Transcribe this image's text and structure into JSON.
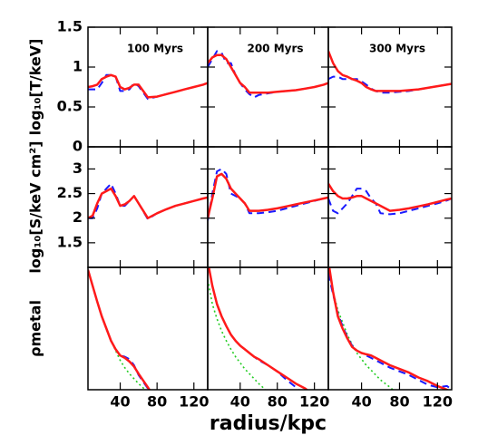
{
  "chart_data": [
    {
      "type": "line",
      "title": "100 Myrs",
      "y_label": "log₁₀[T/keV]",
      "x": [
        5,
        10,
        15,
        20,
        25,
        30,
        35,
        40,
        45,
        50,
        55,
        60,
        70,
        80,
        90,
        100,
        110,
        120,
        130,
        135
      ],
      "xlim": [
        5,
        135
      ],
      "ylim": [
        0,
        1.5
      ],
      "yticks": [
        0,
        0.5,
        1,
        1.5
      ],
      "series": [
        {
          "color": "#1a1aff",
          "values": [
            0.72,
            0.72,
            0.72,
            0.8,
            0.9,
            0.9,
            0.88,
            0.7,
            0.7,
            0.72,
            0.8,
            0.76,
            0.6,
            0.63,
            0.66,
            0.69,
            0.72,
            0.75,
            0.78,
            0.8
          ]
        },
        {
          "color": "#ff1a1a",
          "values": [
            0.75,
            0.76,
            0.78,
            0.85,
            0.88,
            0.9,
            0.88,
            0.75,
            0.72,
            0.74,
            0.78,
            0.78,
            0.62,
            0.63,
            0.66,
            0.69,
            0.72,
            0.75,
            0.78,
            0.8
          ]
        }
      ]
    },
    {
      "type": "line",
      "title": "200 Myrs",
      "x": [
        5,
        10,
        15,
        20,
        25,
        30,
        35,
        40,
        45,
        50,
        55,
        60,
        70,
        80,
        90,
        100,
        110,
        120,
        130,
        135
      ],
      "xlim": [
        5,
        135
      ],
      "ylim": [
        0,
        1.5
      ],
      "series": [
        {
          "color": "#1a1aff",
          "values": [
            1.0,
            1.1,
            1.2,
            1.18,
            1.05,
            1.05,
            0.9,
            0.8,
            0.72,
            0.66,
            0.62,
            0.65,
            0.67,
            0.69,
            0.7,
            0.71,
            0.73,
            0.75,
            0.78,
            0.8
          ]
        },
        {
          "color": "#ff1a1a",
          "values": [
            1.05,
            1.12,
            1.15,
            1.15,
            1.1,
            1.0,
            0.9,
            0.8,
            0.75,
            0.68,
            0.68,
            0.68,
            0.68,
            0.69,
            0.7,
            0.71,
            0.73,
            0.75,
            0.78,
            0.8
          ]
        }
      ]
    },
    {
      "type": "line",
      "title": "300 Myrs",
      "x": [
        5,
        10,
        15,
        20,
        25,
        30,
        35,
        40,
        45,
        50,
        55,
        60,
        70,
        80,
        90,
        100,
        110,
        120,
        130,
        135
      ],
      "xlim": [
        5,
        135
      ],
      "ylim": [
        0,
        1.5
      ],
      "series": [
        {
          "color": "#1a1aff",
          "values": [
            0.85,
            0.88,
            0.88,
            0.85,
            0.85,
            0.85,
            0.85,
            0.82,
            0.78,
            0.73,
            0.7,
            0.68,
            0.68,
            0.69,
            0.7,
            0.72,
            0.74,
            0.76,
            0.78,
            0.79
          ]
        },
        {
          "color": "#ff1a1a",
          "values": [
            1.2,
            1.05,
            0.95,
            0.9,
            0.88,
            0.85,
            0.83,
            0.8,
            0.75,
            0.72,
            0.7,
            0.7,
            0.7,
            0.7,
            0.71,
            0.72,
            0.74,
            0.76,
            0.78,
            0.79
          ]
        }
      ]
    },
    {
      "type": "line",
      "y_label": "log₁₀[S/keV cm²]",
      "x": [
        5,
        10,
        15,
        20,
        25,
        30,
        35,
        40,
        45,
        50,
        55,
        60,
        70,
        80,
        90,
        100,
        110,
        120,
        130,
        135
      ],
      "xlim": [
        5,
        135
      ],
      "ylim": [
        1.0,
        3.45
      ],
      "yticks": [
        1.5,
        2,
        2.5,
        3
      ],
      "series": [
        {
          "color": "#1a1aff",
          "values": [
            2.0,
            2.0,
            2.2,
            2.5,
            2.6,
            2.7,
            2.5,
            2.25,
            2.25,
            2.35,
            2.45,
            2.3,
            1.98,
            2.1,
            2.18,
            2.25,
            2.3,
            2.35,
            2.4,
            2.42
          ]
        },
        {
          "color": "#ff1a1a",
          "values": [
            2.0,
            2.05,
            2.3,
            2.5,
            2.55,
            2.6,
            2.45,
            2.25,
            2.28,
            2.35,
            2.45,
            2.3,
            2.0,
            2.1,
            2.18,
            2.25,
            2.3,
            2.35,
            2.4,
            2.42
          ]
        }
      ]
    },
    {
      "type": "line",
      "x": [
        5,
        10,
        15,
        20,
        25,
        30,
        35,
        40,
        45,
        50,
        55,
        60,
        70,
        80,
        90,
        100,
        110,
        120,
        130,
        135
      ],
      "xlim": [
        5,
        135
      ],
      "ylim": [
        1.0,
        3.45
      ],
      "series": [
        {
          "color": "#1a1aff",
          "values": [
            1.95,
            2.5,
            2.95,
            3.0,
            2.9,
            2.5,
            2.45,
            2.4,
            2.3,
            2.1,
            2.1,
            2.1,
            2.12,
            2.15,
            2.2,
            2.25,
            2.3,
            2.35,
            2.4,
            2.42
          ]
        },
        {
          "color": "#ff1a1a",
          "values": [
            2.0,
            2.4,
            2.85,
            2.9,
            2.8,
            2.6,
            2.5,
            2.4,
            2.3,
            2.15,
            2.15,
            2.15,
            2.17,
            2.2,
            2.24,
            2.28,
            2.32,
            2.36,
            2.4,
            2.42
          ]
        }
      ]
    },
    {
      "type": "line",
      "x": [
        5,
        10,
        15,
        20,
        25,
        30,
        35,
        40,
        45,
        50,
        55,
        60,
        70,
        80,
        90,
        100,
        110,
        120,
        130,
        135
      ],
      "xlim": [
        5,
        135
      ],
      "ylim": [
        1.0,
        3.45
      ],
      "series": [
        {
          "color": "#1a1aff",
          "values": [
            2.4,
            2.15,
            2.1,
            2.2,
            2.3,
            2.45,
            2.6,
            2.6,
            2.55,
            2.4,
            2.3,
            2.1,
            2.08,
            2.1,
            2.15,
            2.2,
            2.25,
            2.3,
            2.36,
            2.4
          ]
        },
        {
          "color": "#ff1a1a",
          "values": [
            2.7,
            2.55,
            2.45,
            2.4,
            2.4,
            2.42,
            2.45,
            2.45,
            2.4,
            2.35,
            2.3,
            2.25,
            2.15,
            2.17,
            2.2,
            2.24,
            2.28,
            2.33,
            2.38,
            2.4
          ]
        }
      ]
    },
    {
      "type": "line",
      "y_label": "ρmetal",
      "x": [
        5,
        10,
        15,
        20,
        25,
        30,
        35,
        40,
        45,
        50,
        55,
        60,
        70,
        80,
        90,
        100,
        110,
        120,
        130,
        135
      ],
      "xlim": [
        5,
        135
      ],
      "ylim": [
        0,
        1
      ],
      "xticks": [
        40,
        80,
        120
      ],
      "series": [
        {
          "color": "#22cc22",
          "values": [
            0.98,
            0.85,
            0.72,
            0.6,
            0.5,
            0.4,
            0.32,
            0.24,
            0.18,
            0.13,
            0.09,
            0.05,
            -0.02,
            null,
            null,
            null,
            null,
            null,
            null,
            null
          ]
        },
        {
          "color": "#1a1aff",
          "values": [
            0.98,
            0.85,
            0.72,
            0.6,
            0.5,
            0.4,
            0.33,
            0.28,
            0.27,
            0.25,
            0.2,
            0.12,
            0.01,
            -0.1,
            null,
            null,
            null,
            null,
            null,
            null
          ]
        },
        {
          "color": "#ff1a1a",
          "values": [
            0.98,
            0.85,
            0.72,
            0.6,
            0.5,
            0.4,
            0.33,
            0.28,
            0.26,
            0.23,
            0.19,
            0.13,
            0.02,
            -0.1,
            null,
            null,
            null,
            null,
            null,
            null
          ]
        }
      ]
    },
    {
      "type": "line",
      "x_label": "radius/kpc",
      "x": [
        5,
        10,
        15,
        20,
        25,
        30,
        35,
        40,
        45,
        50,
        55,
        60,
        70,
        80,
        90,
        100,
        110,
        120,
        130,
        135
      ],
      "xlim": [
        5,
        135
      ],
      "ylim": [
        0,
        1
      ],
      "xticks": [
        40,
        80,
        120
      ],
      "series": [
        {
          "color": "#22cc22",
          "values": [
            0.9,
            0.7,
            0.58,
            0.48,
            0.4,
            0.33,
            0.27,
            0.22,
            0.17,
            0.13,
            0.09,
            0.05,
            -0.02,
            null,
            null,
            null,
            null,
            null,
            null,
            null
          ]
        },
        {
          "color": "#1a1aff",
          "values": [
            1.05,
            0.85,
            0.7,
            0.6,
            0.52,
            0.45,
            0.4,
            0.36,
            0.33,
            0.3,
            0.27,
            0.24,
            0.2,
            0.15,
            0.08,
            0.02,
            -0.05,
            null,
            null,
            null
          ]
        },
        {
          "color": "#ff1a1a",
          "values": [
            1.05,
            0.85,
            0.7,
            0.6,
            0.52,
            0.45,
            0.4,
            0.36,
            0.33,
            0.3,
            0.27,
            0.25,
            0.2,
            0.15,
            0.1,
            0.05,
            0.01,
            -0.05,
            null,
            null
          ]
        }
      ]
    },
    {
      "type": "line",
      "x": [
        5,
        10,
        15,
        20,
        25,
        30,
        35,
        40,
        45,
        50,
        55,
        60,
        70,
        80,
        90,
        100,
        110,
        120,
        130,
        135
      ],
      "xlim": [
        5,
        135
      ],
      "ylim": [
        0,
        1
      ],
      "xticks": [
        40,
        80,
        120
      ],
      "series": [
        {
          "color": "#22cc22",
          "values": [
            1.0,
            0.8,
            0.65,
            0.55,
            0.45,
            0.37,
            0.3,
            0.25,
            0.2,
            0.16,
            0.12,
            0.08,
            0.02,
            -0.05,
            null,
            null,
            null,
            null,
            null,
            null
          ]
        },
        {
          "color": "#1a1aff",
          "values": [
            0.95,
            0.78,
            0.62,
            0.52,
            0.43,
            0.36,
            0.32,
            0.3,
            0.28,
            0.26,
            0.24,
            0.22,
            0.18,
            0.15,
            0.12,
            0.08,
            0.04,
            0.02,
            0.03,
            0.0
          ]
        },
        {
          "color": "#ff1a1a",
          "values": [
            1.05,
            0.8,
            0.6,
            0.5,
            0.42,
            0.35,
            0.32,
            0.3,
            0.29,
            0.28,
            0.26,
            0.24,
            0.2,
            0.17,
            0.14,
            0.1,
            0.07,
            0.03,
            0.0,
            -0.02
          ]
        }
      ]
    }
  ]
}
